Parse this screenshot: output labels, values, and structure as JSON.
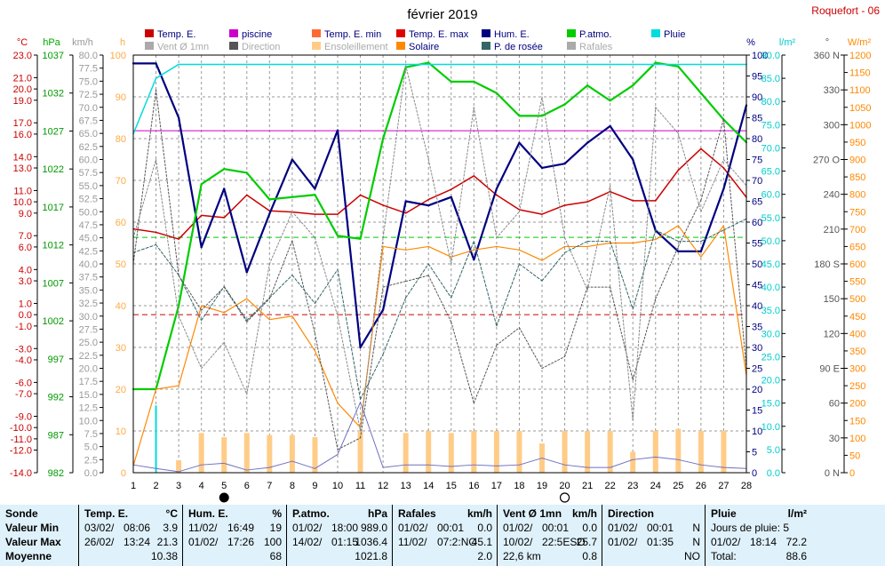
{
  "header": {
    "title": "février 2019",
    "station": "Roquefort - 06"
  },
  "legend": [
    {
      "label": "Temp. E.",
      "color": "#cc0000",
      "muted": false
    },
    {
      "label": "piscine",
      "color": "#cc00cc",
      "muted": false
    },
    {
      "label": "Temp. E. min",
      "color": "#ff6a33",
      "muted": false
    },
    {
      "label": "Temp. E. max",
      "color": "#e00000",
      "muted": false
    },
    {
      "label": "Hum. E.",
      "color": "#000080",
      "muted": false
    },
    {
      "label": "P.atmo.",
      "color": "#00cc00",
      "muted": false
    },
    {
      "label": "Pluie",
      "color": "#00dddd",
      "muted": false
    },
    {
      "label": "Vent Ø 1mn",
      "color": "#aaaaaa",
      "muted": true
    },
    {
      "label": "Direction",
      "color": "#555555",
      "muted": true
    },
    {
      "label": "Ensoleillement",
      "color": "#ffcc88",
      "muted": true
    },
    {
      "label": "Solaire",
      "color": "#ff8800",
      "muted": false
    },
    {
      "label": "P. de rosée",
      "color": "#336666",
      "muted": false
    },
    {
      "label": "Rafales",
      "color": "#aaaaaa",
      "muted": true
    }
  ],
  "axis_units": {
    "temp": "°C",
    "pressure": "hPa",
    "wind": "km/h",
    "sun": "h",
    "humidity": "%",
    "rain": "l/m²",
    "direction": "°",
    "solar": "W/m²"
  },
  "chart_data": {
    "type": "line",
    "x": [
      1,
      2,
      3,
      4,
      5,
      6,
      7,
      8,
      9,
      10,
      11,
      12,
      13,
      14,
      15,
      16,
      17,
      18,
      19,
      20,
      21,
      22,
      23,
      24,
      25,
      26,
      27,
      28
    ],
    "xlabel": "",
    "axes": {
      "temp": {
        "range": [
          -14,
          23
        ],
        "ticks": [
          23.0,
          21.0,
          20.0,
          19.0,
          17.0,
          16.0,
          14.0,
          13.0,
          11.0,
          10.0,
          9.0,
          7.0,
          6.0,
          4.0,
          3.0,
          1.0,
          0.0,
          -1.0,
          -3.0,
          -4.0,
          -6.0,
          -7.0,
          -9.0,
          -10.0,
          -11.0,
          -12.0,
          -14.0
        ]
      },
      "pressure": {
        "range": [
          982,
          1037
        ],
        "ticks": [
          1037,
          1032,
          1027,
          1022,
          1017,
          1012,
          1007,
          1002,
          997,
          992,
          987,
          982
        ]
      },
      "wind": {
        "range": [
          0,
          80
        ],
        "step": 2.5
      },
      "sun": {
        "range": [
          0,
          100
        ],
        "ticks": [
          100,
          90,
          80,
          70,
          60,
          50,
          40,
          30,
          20,
          10,
          0
        ]
      },
      "humidity": {
        "range": [
          0,
          100
        ],
        "step": 5
      },
      "rain": {
        "range": [
          0,
          90
        ],
        "step": 5
      },
      "direction": {
        "range": [
          0,
          360
        ],
        "ticks": [
          "360 N",
          "330",
          "300",
          "270 O",
          "240",
          "210",
          "180 S",
          "150",
          "120",
          "90 E",
          "60",
          "30",
          "0 N"
        ]
      },
      "solar": {
        "range": [
          0,
          1200
        ],
        "step": 50
      }
    },
    "moon": [
      {
        "day": 5,
        "phase": "new"
      },
      {
        "day": 20,
        "phase": "full"
      }
    ],
    "reference_lines": [
      {
        "name": "piscine",
        "value": 16.3,
        "axis": "temp",
        "color": "#cc00cc",
        "style": "solid"
      },
      {
        "value": 0,
        "axis": "temp",
        "color": "#cc0000",
        "style": "dashed"
      },
      {
        "value": 1013,
        "axis": "pressure",
        "color": "#00cc00",
        "style": "dashed"
      }
    ],
    "series": [
      {
        "name": "Temp. E.",
        "axis": "temp",
        "color": "#cc0000",
        "width": 1.5,
        "dash": "",
        "values": [
          7.6,
          7.3,
          6.7,
          8.8,
          8.6,
          10.6,
          9.2,
          9.1,
          8.9,
          8.9,
          10.6,
          9.7,
          9.0,
          10.2,
          11.1,
          12.3,
          10.6,
          9.3,
          8.9,
          9.7,
          10.0,
          10.9,
          10.1,
          10.1,
          12.8,
          14.7,
          13.0,
          10.4
        ]
      },
      {
        "name": "Hum. E.",
        "axis": "humidity",
        "color": "#000080",
        "width": 2.2,
        "dash": "",
        "values": [
          98,
          98,
          85,
          54,
          68,
          48,
          62,
          75,
          68,
          82,
          30,
          39,
          65,
          64,
          66,
          51,
          68,
          79,
          73,
          74,
          79,
          83,
          75,
          58,
          53,
          53,
          68,
          88
        ]
      },
      {
        "name": "P.atmo.",
        "axis": "pressure",
        "color": "#00cc00",
        "width": 2.2,
        "dash": "",
        "values": [
          993,
          993,
          1004,
          1020,
          1022,
          1021.5,
          1018,
          1018.3,
          1018.6,
          1013.2,
          1012.8,
          1026,
          1035.4,
          1036,
          1033.5,
          1033.5,
          1032,
          1029,
          1029,
          1030.5,
          1033,
          1031,
          1033,
          1036,
          1035.5,
          1032,
          1028.5,
          1025.5
        ]
      },
      {
        "name": "Pluie",
        "axis": "rain",
        "color": "#00dddd",
        "width": 1.5,
        "dash": "",
        "values": [
          73,
          85,
          88,
          88,
          88,
          88,
          88,
          88,
          88,
          88,
          88,
          88,
          88,
          88,
          88,
          88,
          88,
          88,
          88,
          88,
          88,
          88,
          88,
          88,
          88,
          88,
          88,
          88
        ]
      },
      {
        "name": "Solaire",
        "axis": "solar",
        "color": "#ff8800",
        "width": 1.2,
        "dash": "",
        "values": [
          20,
          240,
          250,
          480,
          460,
          500,
          440,
          450,
          350,
          200,
          130,
          650,
          640,
          650,
          620,
          640,
          650,
          640,
          610,
          650,
          650,
          660,
          660,
          670,
          710,
          620,
          710,
          280
        ]
      },
      {
        "name": "P. de rosée",
        "axis": "temp",
        "color": "#336666",
        "width": 1,
        "dash": "3,2",
        "values": [
          5.5,
          6.2,
          3.5,
          -0.5,
          2.5,
          -0.5,
          1.5,
          3.5,
          1.0,
          4.0,
          -7.5,
          -3.5,
          1.5,
          4.5,
          1.5,
          6.5,
          -1.0,
          4.5,
          3.0,
          5.5,
          6.5,
          6.5,
          0.5,
          7.5,
          6.5,
          6.5,
          7.5,
          8.5
        ]
      },
      {
        "name": "Direction",
        "axis": "direction",
        "color": "#555555",
        "width": 1,
        "dash": "2,2",
        "values": [
          180,
          330,
          170,
          140,
          160,
          130,
          150,
          200,
          120,
          20,
          30,
          160,
          165,
          170,
          130,
          60,
          110,
          125,
          90,
          100,
          160,
          160,
          80,
          150,
          195,
          235,
          305,
          90
        ]
      },
      {
        "name": "Rafales",
        "axis": "wind",
        "color": "#888888",
        "width": 1,
        "dash": "2,2",
        "values": [
          45,
          60,
          30,
          20,
          25,
          15,
          40,
          50,
          45,
          30,
          8,
          45,
          78,
          60,
          40,
          70,
          45,
          50,
          72,
          45,
          35,
          55,
          10,
          70,
          65,
          50,
          60,
          55
        ]
      },
      {
        "name": "Vent Ø 1mn",
        "axis": "wind",
        "color": "#7070c0",
        "width": 1,
        "dash": "",
        "values": [
          1.5,
          0.8,
          0.2,
          1.5,
          1.8,
          0.5,
          1.0,
          2.2,
          0.8,
          3.5,
          13.5,
          1.0,
          1.5,
          1.5,
          1.2,
          1.5,
          1.3,
          1.5,
          2.8,
          1.5,
          1.0,
          1.0,
          2.5,
          3.0,
          2.5,
          1.5,
          1.0,
          0.8
        ]
      }
    ],
    "bars": [
      {
        "name": "Ensoleillement",
        "axis": "sun",
        "color": "#ffcc88",
        "values": [
          0,
          0,
          3,
          9.5,
          8.5,
          9.5,
          9,
          9,
          8.5,
          0,
          10,
          0,
          9.5,
          10,
          9.5,
          10,
          10,
          10,
          7,
          10,
          10,
          10,
          5,
          10,
          10.5,
          10,
          10,
          0
        ]
      },
      {
        "name": "Pluie (jour)",
        "axis": "rain",
        "color": "#00dddd",
        "values": [
          0,
          14.5,
          0,
          0,
          0,
          0,
          0,
          0,
          0,
          0,
          0,
          0,
          0,
          0,
          0,
          0,
          0,
          0,
          0,
          0,
          0,
          0,
          0,
          0,
          0,
          0,
          0,
          0
        ]
      }
    ]
  },
  "stats": {
    "sonde": {
      "title": "Sonde",
      "rows": [
        "Valeur Min",
        "Valeur Max",
        "Moyenne"
      ]
    },
    "temp": {
      "title": "Temp. E.",
      "unit": "°C",
      "min_date": "03/02/",
      "min_time": "08:06",
      "min_val": "3.9",
      "max_date": "26/02/",
      "max_time": "13:24",
      "max_val": "21.3",
      "avg": "10.38"
    },
    "hum": {
      "title": "Hum. E.",
      "unit": "%",
      "min_date": "11/02/",
      "min_time": "16:49",
      "min_val": "19",
      "max_date": "01/02/",
      "max_time": "17:26",
      "max_val": "100",
      "avg": "68"
    },
    "pres": {
      "title": "P.atmo.",
      "unit": "hPa",
      "min_date": "01/02/",
      "min_time": "18:00",
      "min_val": "989.0",
      "max_date": "14/02/",
      "max_time": "01:15",
      "max_val": "1036.4",
      "avg": "1021.8"
    },
    "raf": {
      "title": "Rafales",
      "unit": "km/h",
      "min_date": "01/02/",
      "min_time": "00:01",
      "min_val": "0.0",
      "max_date": "11/02/",
      "max_time": "07:2:NO",
      "max_val": "45.1",
      "avg": "2.0"
    },
    "vent": {
      "title": "Vent Ø 1mn",
      "unit": "km/h",
      "min_date": "01/02/",
      "min_time": "00:01",
      "min_val": "0.0",
      "max_date": "10/02/",
      "max_time": "22:5ESO",
      "max_val": "25.7",
      "dist": "22,6 km",
      "avg": "0.8"
    },
    "dir": {
      "title": "Direction",
      "min_date": "01/02/",
      "min_time": "00:01",
      "min_val": "N",
      "max_date": "01/02/",
      "max_time": "01:35",
      "max_val": "N",
      "avg": "NO"
    },
    "pluie": {
      "title": "Pluie",
      "unit": "l/m²",
      "days_label": "Jours de pluie: 5",
      "max_date": "01/02/",
      "max_time": "18:14",
      "max_val": "72.2",
      "total_label": "Total:",
      "total": "88.6"
    }
  }
}
